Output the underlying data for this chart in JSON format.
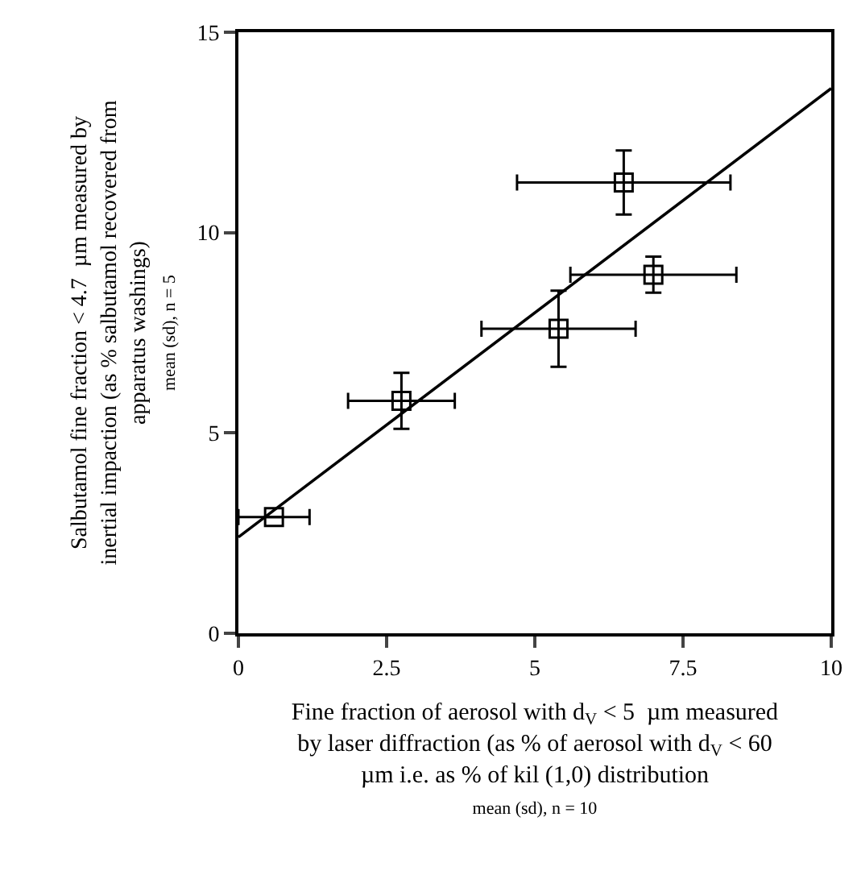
{
  "chart_data": {
    "type": "scatter",
    "xlabel": "Fine fraction of aerosol with d$_{V}$ < 5  µm measured\nby laser diffraction (as % of aerosol with d$_{V}$ < 60\nµm i.e. as % of kil (1,0) distribution\nmean (sd), n = 10",
    "ylabel": "Salbutamol fine fraction < 4.7  µm measured by\ninertial impaction (as % salbutamol recovered from\napparatus washings)\nmean (sd), n = 5",
    "series": [
      {
        "color": "#000000",
        "x": [
          0.6,
          2.75,
          5.4,
          7.0,
          6.5
        ],
        "values": [
          2.9,
          5.8,
          7.6,
          8.95,
          11.25
        ],
        "errors": [
          null,
          0.7,
          0.95,
          0.45,
          0.8
        ],
        "xerrors": [
          0.6,
          0.9,
          1.3,
          1.4,
          1.8
        ]
      },
      {
        "type": "line",
        "color": "#000000",
        "x": [
          0,
          10
        ],
        "values": [
          2.4,
          13.6
        ],
        "marker": "none"
      }
    ],
    "marker": "square",
    "line_style": "solid",
    "xlim": [
      0,
      10
    ],
    "xticks": [
      0,
      2.5,
      5,
      7.5,
      10
    ],
    "ylim": [
      0,
      15
    ],
    "yticks": [
      0,
      5,
      10,
      15
    ],
    "grid": false,
    "legend": false
  }
}
